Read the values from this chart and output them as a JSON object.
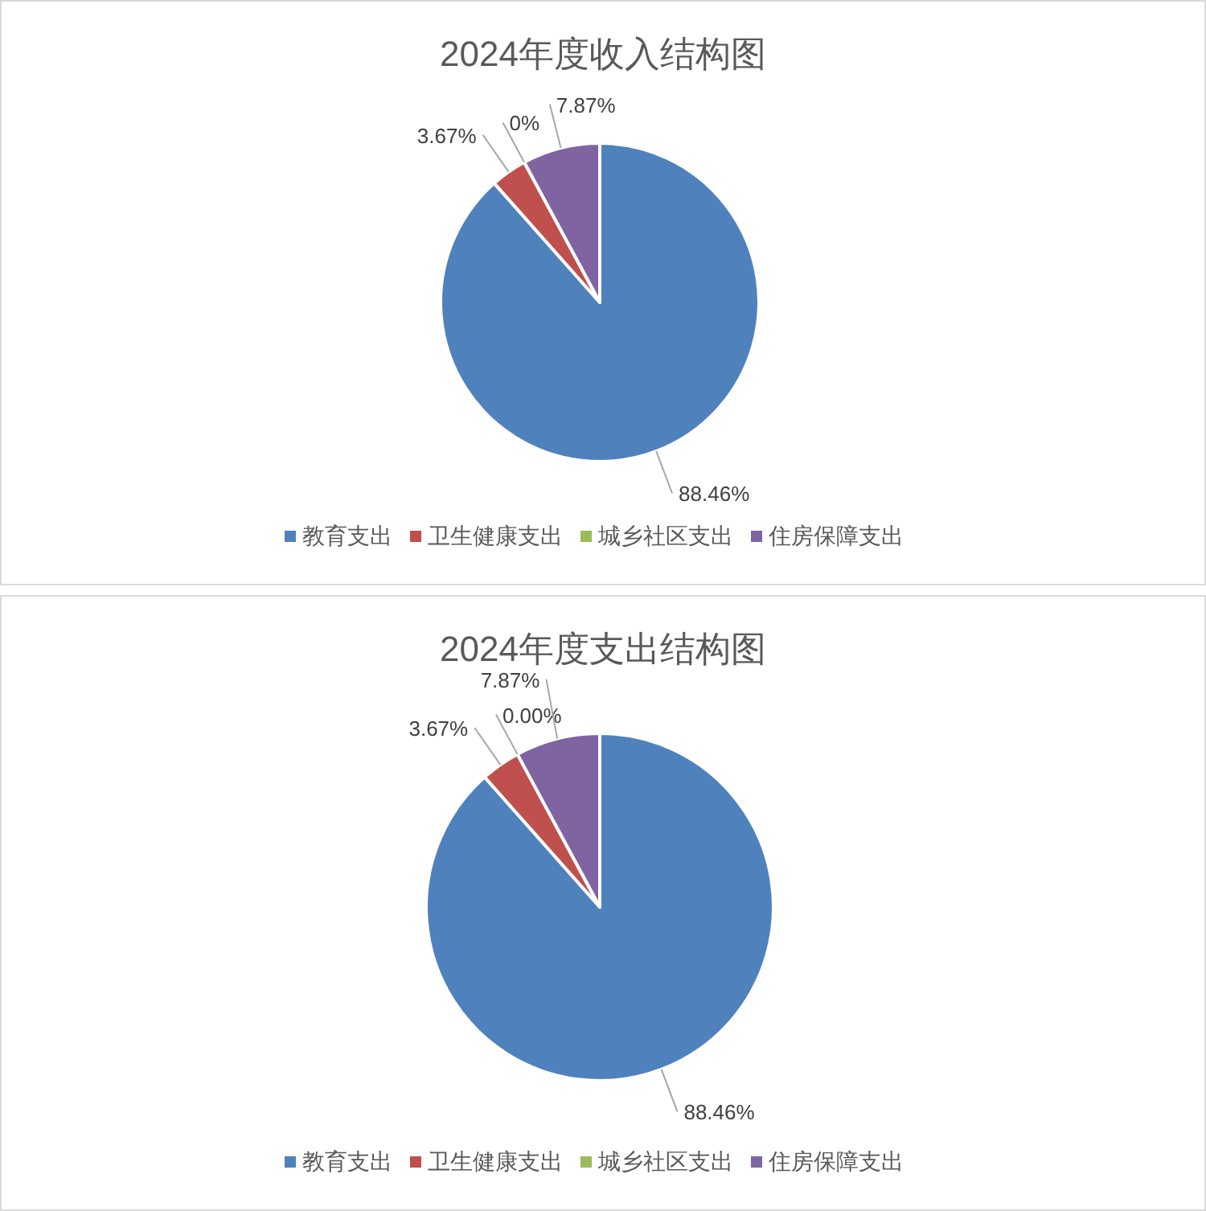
{
  "chart_data": [
    {
      "type": "pie",
      "title": "2024年度收入结构图",
      "categories": [
        "教育支出",
        "卫生健康支出",
        "城乡社区支出",
        "住房保障支出"
      ],
      "values": [
        88.46,
        3.67,
        0,
        7.87
      ],
      "value_labels": [
        "88.46%",
        "3.67%",
        "0%",
        "7.87%"
      ],
      "colors": [
        "#4f81bd",
        "#c0504d",
        "#9bbb59",
        "#8064a2"
      ],
      "legend": "bottom"
    },
    {
      "type": "pie",
      "title": "2024年度支出结构图",
      "categories": [
        "教育支出",
        "卫生健康支出",
        "城乡社区支出",
        "住房保障支出"
      ],
      "values": [
        88.46,
        3.67,
        0,
        7.87
      ],
      "value_labels": [
        "88.46%",
        "3.67%",
        "0.00%",
        "7.87%"
      ],
      "colors": [
        "#4f81bd",
        "#c0504d",
        "#9bbb59",
        "#8064a2"
      ],
      "legend": "bottom"
    }
  ]
}
